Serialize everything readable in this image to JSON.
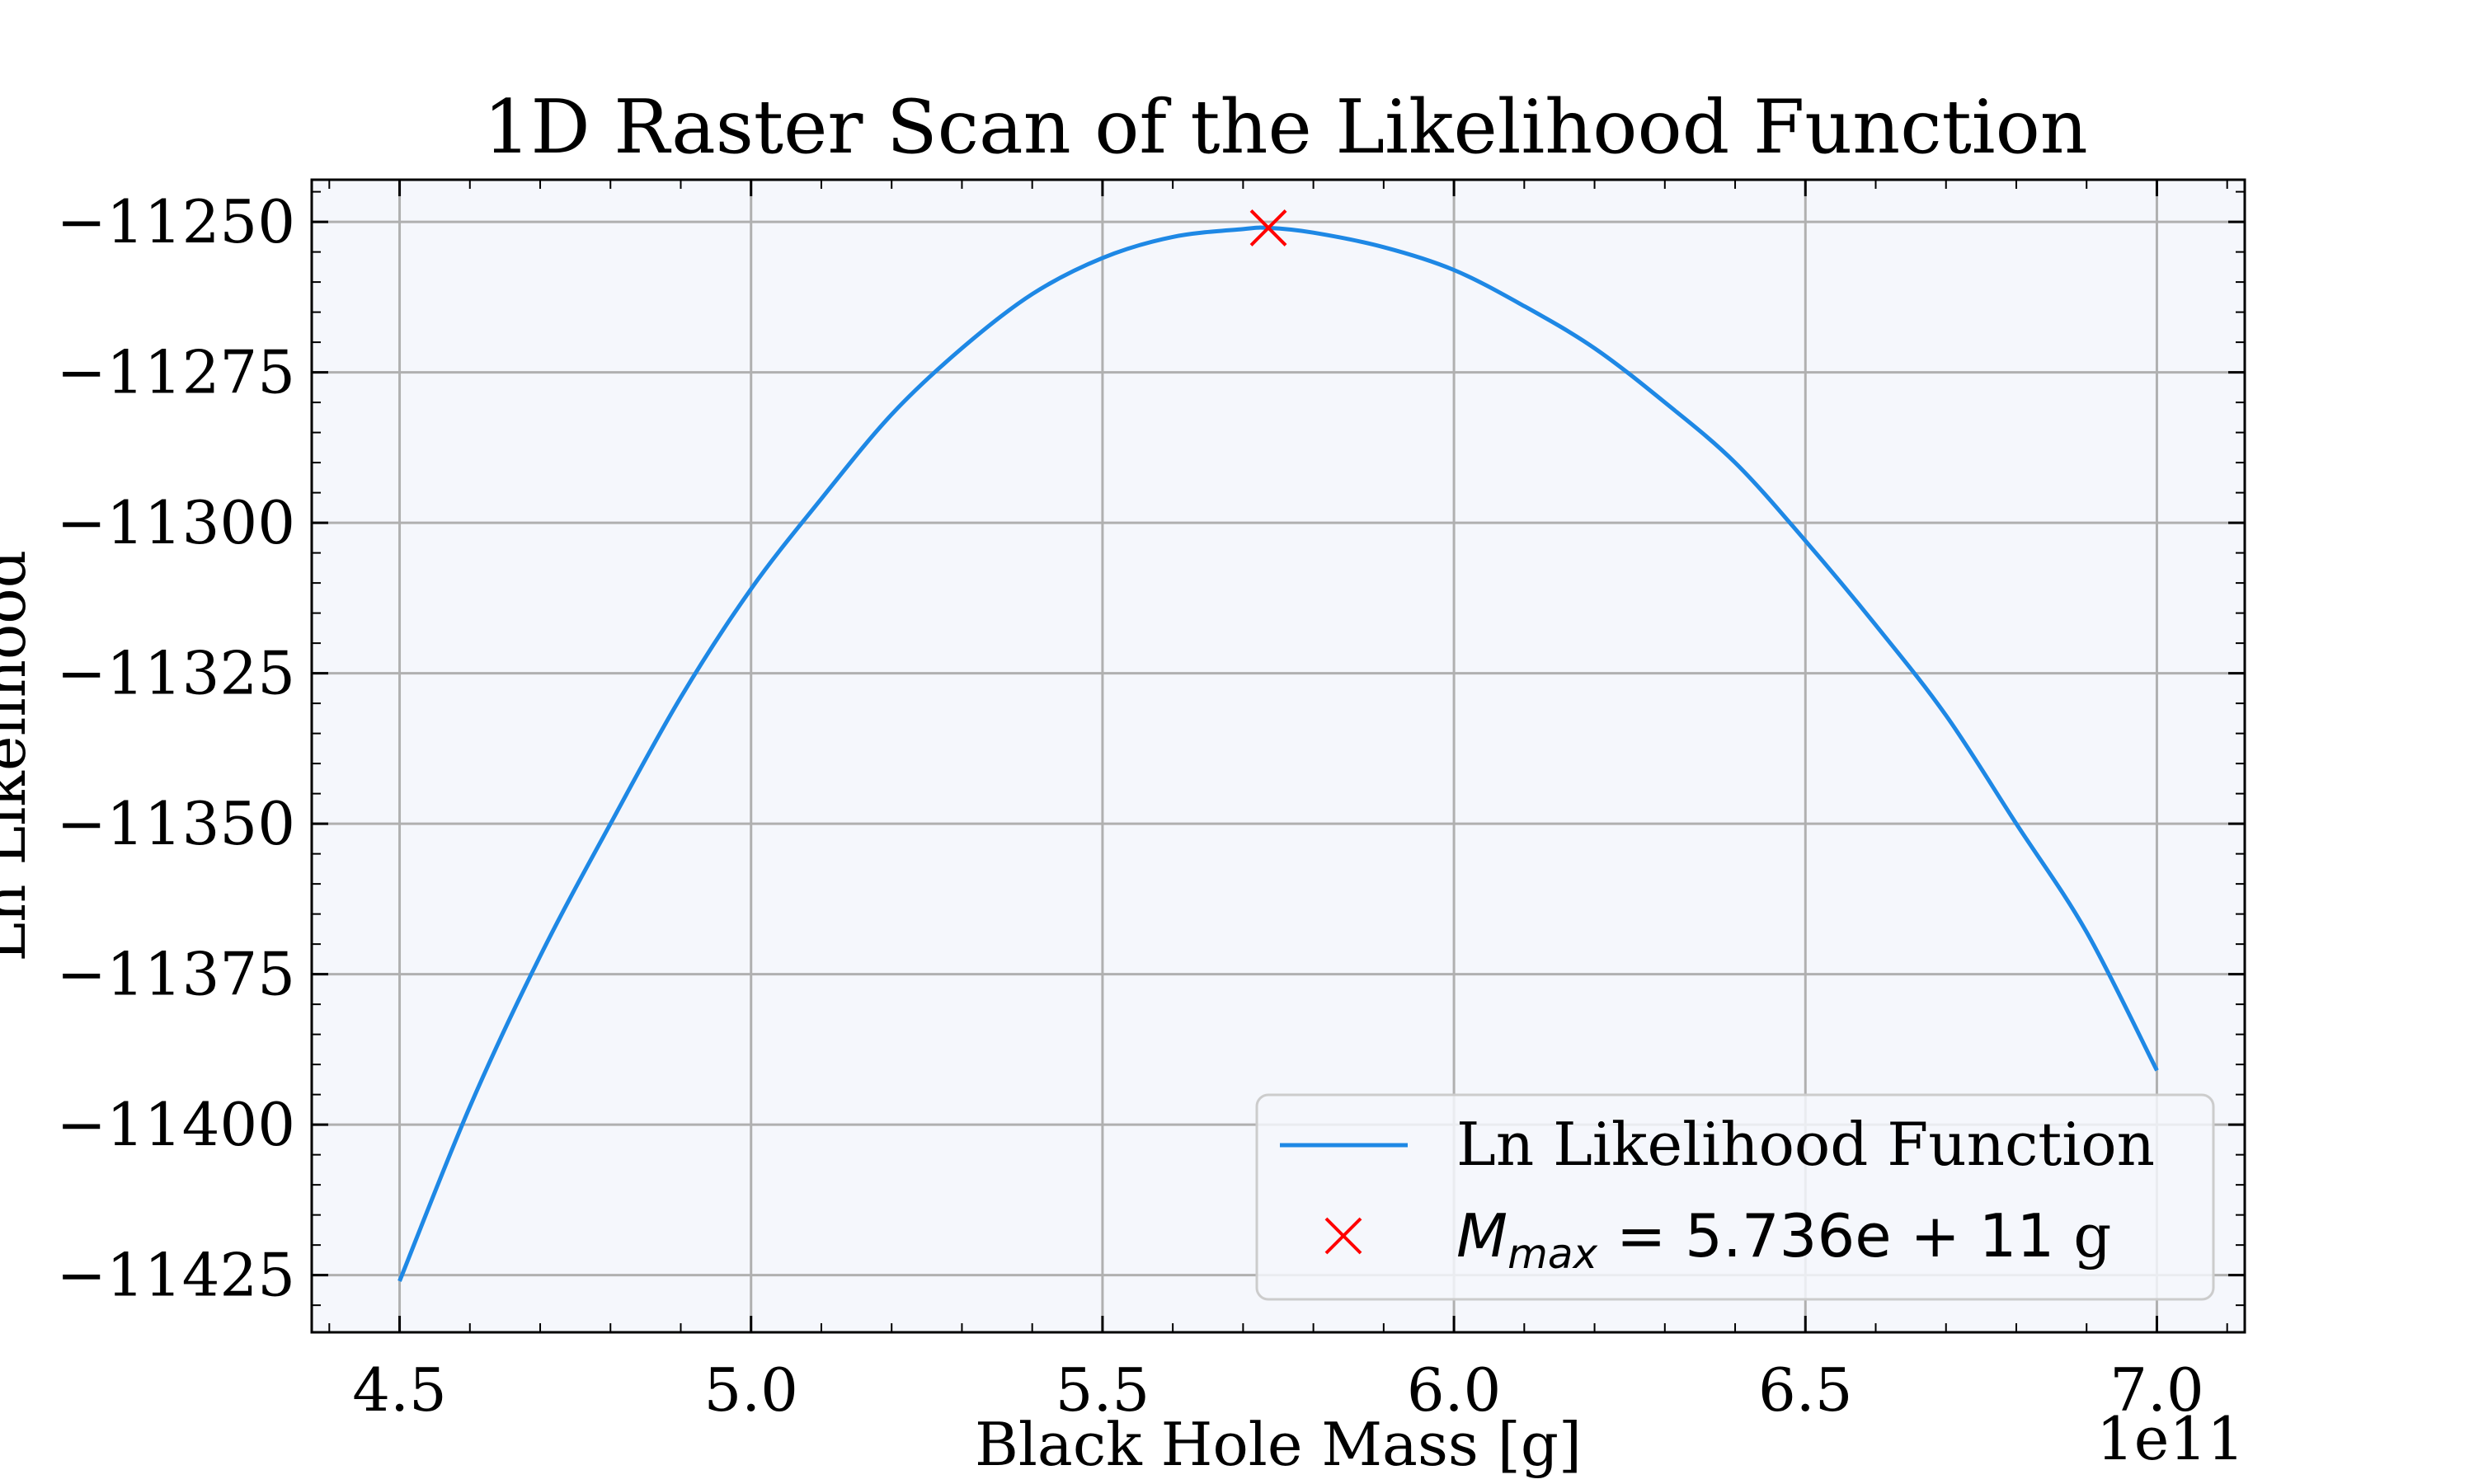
{
  "chart_data": {
    "type": "line",
    "title": "1D Raster Scan of the Likelihood Function",
    "xlabel": "Black Hole Mass [g]",
    "ylabel": "Ln Likelihood",
    "x_offset_label": "1e11",
    "xlim": [
      4.375,
      7.125
    ],
    "ylim": [
      -11434.5,
      -11243.0
    ],
    "xticks": [
      4.5,
      5.0,
      5.5,
      6.0,
      6.5,
      7.0
    ],
    "xtick_labels": [
      "4.5",
      "5.0",
      "5.5",
      "6.0",
      "6.5",
      "7.0"
    ],
    "yticks": [
      -11250,
      -11275,
      -11300,
      -11325,
      -11350,
      -11375,
      -11400,
      -11425
    ],
    "ytick_labels": [
      "−11250",
      "−11275",
      "−11300",
      "−11325",
      "−11350",
      "−11375",
      "−11400",
      "−11425"
    ],
    "grid": true,
    "legend_position": "lower-right",
    "series": [
      {
        "name": "Ln Likelihood Function",
        "color": "#1e88e5",
        "x": [
          4.5,
          4.6,
          4.7,
          4.8,
          4.9,
          5.0,
          5.1,
          5.2,
          5.3,
          5.4,
          5.5,
          5.6,
          5.7,
          5.736,
          5.8,
          5.9,
          6.0,
          6.1,
          6.2,
          6.3,
          6.4,
          6.5,
          6.6,
          6.7,
          6.8,
          6.9,
          7.0
        ],
        "y": [
          -11426,
          -11397,
          -11372,
          -11350,
          -11329,
          -11311,
          -11296,
          -11282,
          -11271,
          -11262,
          -11256,
          -11252.5,
          -11251.2,
          -11251,
          -11251.8,
          -11254.2,
          -11258,
          -11264,
          -11271,
          -11280,
          -11290,
          -11303,
          -11317,
          -11332,
          -11350,
          -11368,
          -11391
        ]
      }
    ],
    "max_marker": {
      "x": 5.736,
      "y": -11251,
      "color": "#ff0000",
      "legend_label_prefix": "M",
      "legend_label_subscript": "max",
      "legend_label_value": " = 5.736e + 11 ",
      "legend_label_unit": "g"
    },
    "colors": {
      "plot_background": "#f5f7fc",
      "grid": "#b0b0b0",
      "frame": "#000000"
    }
  }
}
